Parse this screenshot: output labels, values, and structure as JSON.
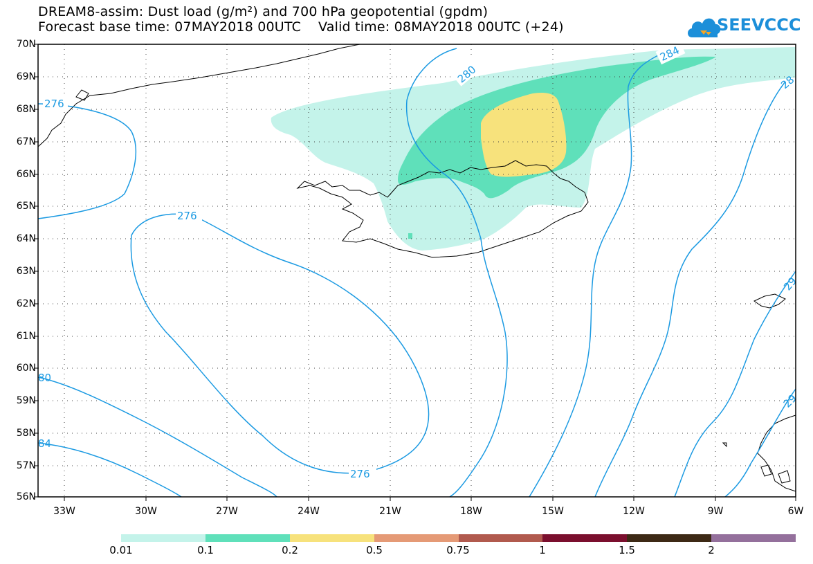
{
  "header": {
    "title_line1": "DREAM8-assim: Dust load (g/m²) and 700 hPa geopotential (gpdm)",
    "title_line2": "Forecast base time: 07MAY2018 00UTC    Valid time: 08MAY2018 00UTC (+24)",
    "logo_text": "SEEVCCC",
    "logo_icon": "cloud-logo-icon"
  },
  "axes": {
    "lat_labels": [
      "70N",
      "69N",
      "68N",
      "67N",
      "66N",
      "65N",
      "64N",
      "63N",
      "62N",
      "61N",
      "60N",
      "59N",
      "58N",
      "57N",
      "56N"
    ],
    "lon_labels": [
      "33W",
      "30W",
      "27W",
      "24W",
      "21W",
      "18W",
      "15W",
      "12W",
      "9W",
      "6W"
    ],
    "lat_range": [
      56,
      70
    ],
    "lon_range": [
      -34.5,
      -6
    ],
    "grid": "dotted"
  },
  "contour_labels": [
    "276",
    "276",
    "276",
    "280",
    "284",
    "28",
    "29",
    "29",
    "80",
    "84"
  ],
  "legend": {
    "labels": [
      "0.01",
      "0.1",
      "0.2",
      "0.5",
      "0.75",
      "1",
      "1.5",
      "2"
    ],
    "colors": [
      "#c4f3ea",
      "#5fe0ba",
      "#f7e27c",
      "#e59a76",
      "#b15a4e",
      "#7b0f2e",
      "#3d2915",
      "#94709c"
    ]
  },
  "colors": {
    "contour": "#1b9ae2",
    "dust_low": "#c4f3ea",
    "dust_mid": "#5fe0ba",
    "dust_high": "#f7e27c",
    "coast": "#000000"
  }
}
